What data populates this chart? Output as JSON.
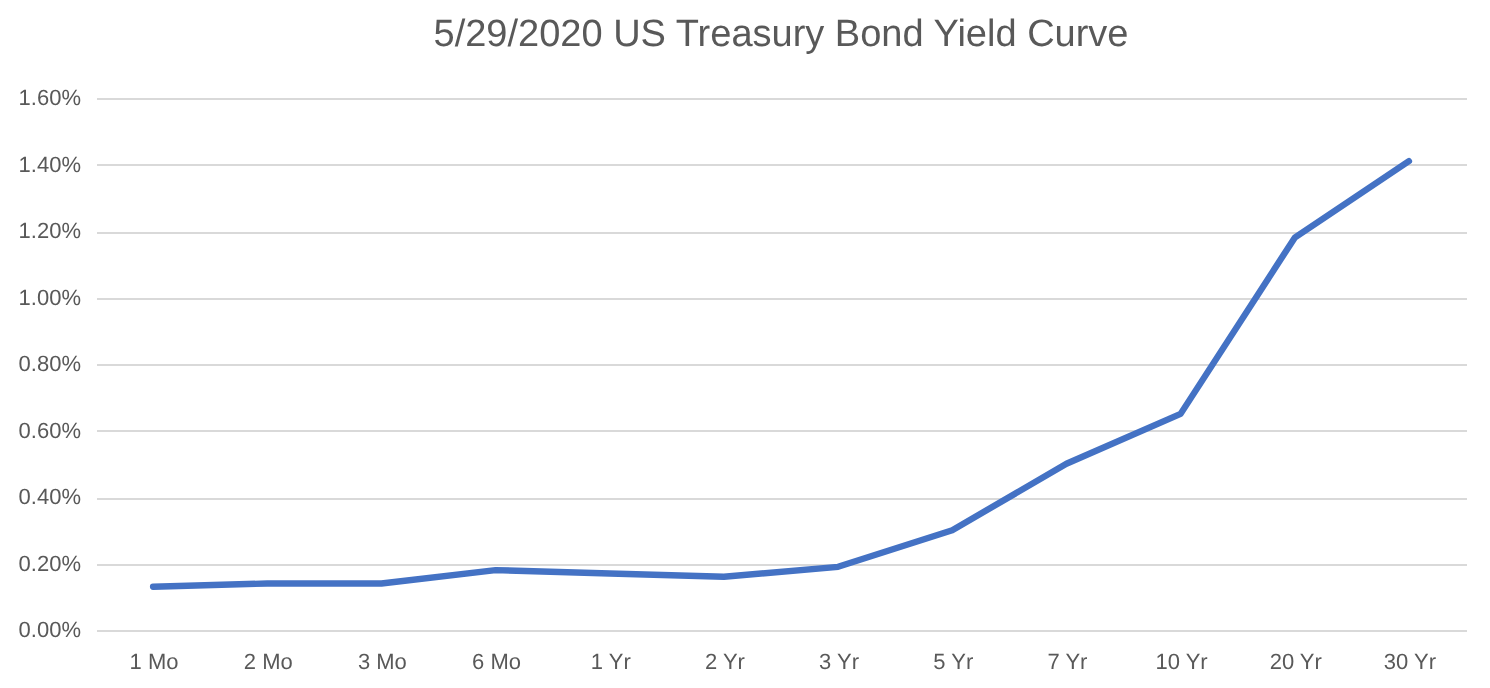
{
  "chart_data": {
    "type": "line",
    "title": "5/29/2020 US Treasury Bond Yield Curve",
    "categories": [
      "1 Mo",
      "2 Mo",
      "3 Mo",
      "6 Mo",
      "1 Yr",
      "2 Yr",
      "3 Yr",
      "5 Yr",
      "7 Yr",
      "10 Yr",
      "20 Yr",
      "30 Yr"
    ],
    "series": [
      {
        "color": "#4472c4",
        "values": [
          0.13,
          0.14,
          0.14,
          0.18,
          0.17,
          0.16,
          0.19,
          0.3,
          0.5,
          0.65,
          1.18,
          1.41
        ]
      }
    ],
    "ylim": [
      0,
      1.6
    ],
    "yticks": [
      {
        "value": 0,
        "label": "0.00%"
      },
      {
        "value": 0.2,
        "label": "0.20%"
      },
      {
        "value": 0.4,
        "label": "0.40%"
      },
      {
        "value": 0.6,
        "label": "0.60%"
      },
      {
        "value": 0.8,
        "label": "0.80%"
      },
      {
        "value": 1.0,
        "label": "1.00%"
      },
      {
        "value": 1.2,
        "label": "1.20%"
      },
      {
        "value": 1.4,
        "label": "1.40%"
      },
      {
        "value": 1.6,
        "label": "1.60%"
      }
    ],
    "grid": "y",
    "legend": false,
    "marker": "none",
    "line_style": "solid"
  }
}
